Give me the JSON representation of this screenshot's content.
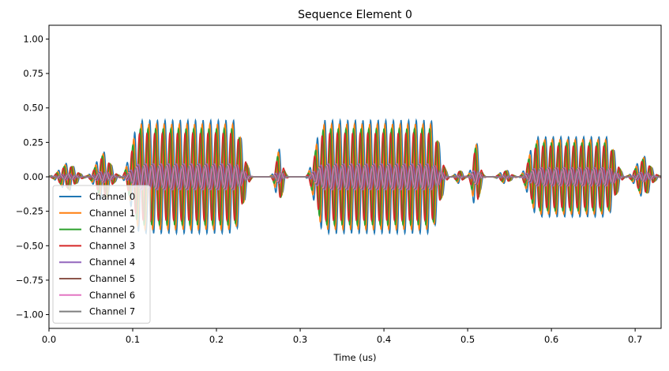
{
  "chart_data": {
    "type": "line",
    "title": "Sequence Element 0",
    "xlabel": "Time (us)",
    "ylabel": "",
    "xlim": [
      0.0,
      0.731
    ],
    "ylim": [
      -1.1,
      1.1
    ],
    "grid": false,
    "legend_position": "lower-left",
    "xticks": [
      0.0,
      0.1,
      0.2,
      0.3,
      0.4,
      0.5,
      0.6,
      0.7
    ],
    "xtick_labels": [
      "0.0",
      "0.1",
      "0.2",
      "0.3",
      "0.4",
      "0.5",
      "0.6",
      "0.7"
    ],
    "yticks": [
      1.0,
      0.75,
      0.5,
      0.25,
      0.0,
      -0.25,
      -0.5,
      -0.75,
      -1.0
    ],
    "ytick_labels": [
      "1.00",
      "0.75",
      "0.50",
      "0.25",
      "0.00",
      "−0.25",
      "−0.50",
      "−0.75",
      "−1.00"
    ],
    "carrier_cycles_per_us": 110,
    "pulse_segments": [
      {
        "start": 0.0,
        "end": 0.045,
        "amplitude": 0.1,
        "shape": "gaussian"
      },
      {
        "start": 0.045,
        "end": 0.085,
        "amplitude": 0.18,
        "shape": "gaussian"
      },
      {
        "start": 0.085,
        "end": 0.245,
        "amplitude": 0.41,
        "shape": "flat-top"
      },
      {
        "start": 0.265,
        "end": 0.285,
        "amplitude": 0.2,
        "shape": "gaussian"
      },
      {
        "start": 0.305,
        "end": 0.48,
        "amplitude": 0.41,
        "shape": "flat-top"
      },
      {
        "start": 0.48,
        "end": 0.5,
        "amplitude": 0.05,
        "shape": "gaussian"
      },
      {
        "start": 0.5,
        "end": 0.52,
        "amplitude": 0.25,
        "shape": "gaussian"
      },
      {
        "start": 0.53,
        "end": 0.56,
        "amplitude": 0.05,
        "shape": "gaussian"
      },
      {
        "start": 0.56,
        "end": 0.69,
        "amplitude": 0.29,
        "shape": "flat-top"
      },
      {
        "start": 0.69,
        "end": 0.73,
        "amplitude": 0.15,
        "shape": "gaussian"
      }
    ],
    "series": [
      {
        "name": "Channel 0",
        "color": "#1f77b4",
        "relative_amplitude": 1.0,
        "phase_deg": 0
      },
      {
        "name": "Channel 1",
        "color": "#ff7f0e",
        "relative_amplitude": 0.93,
        "phase_deg": 45
      },
      {
        "name": "Channel 2",
        "color": "#2ca02c",
        "relative_amplitude": 0.85,
        "phase_deg": 90
      },
      {
        "name": "Channel 3",
        "color": "#d62728",
        "relative_amplitude": 0.77,
        "phase_deg": 135
      },
      {
        "name": "Channel 4",
        "color": "#9467bd",
        "relative_amplitude": 0.23,
        "phase_deg": 180
      },
      {
        "name": "Channel 5",
        "color": "#8c564b",
        "relative_amplitude": 0.21,
        "phase_deg": 225
      },
      {
        "name": "Channel 6",
        "color": "#e377c2",
        "relative_amplitude": 0.2,
        "phase_deg": 270
      },
      {
        "name": "Channel 7",
        "color": "#7f7f7f",
        "relative_amplitude": 0.19,
        "phase_deg": 315
      }
    ]
  }
}
